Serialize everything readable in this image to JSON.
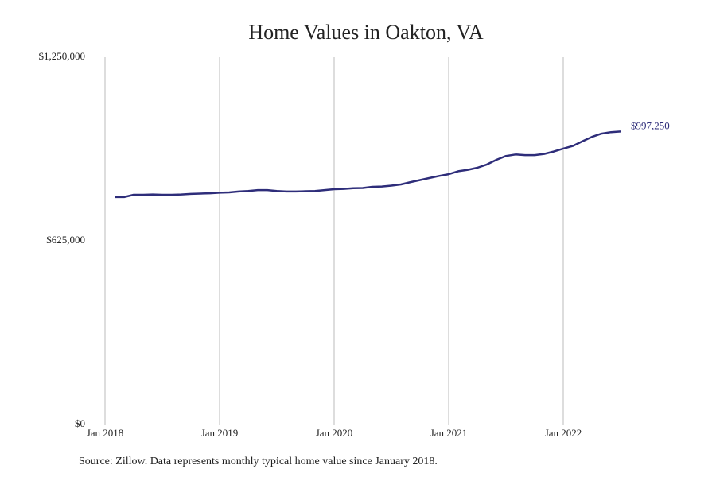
{
  "chart_data": {
    "type": "line",
    "title": "Home Values in Oakton, VA",
    "note": "Source: Zillow. Data represents monthly typical home value since January 2018.",
    "x": [
      "Feb 2018",
      "Mar 2018",
      "Apr 2018",
      "May 2018",
      "Jun 2018",
      "Jul 2018",
      "Aug 2018",
      "Sep 2018",
      "Oct 2018",
      "Nov 2018",
      "Dec 2018",
      "Jan 2019",
      "Feb 2019",
      "Mar 2019",
      "Apr 2019",
      "May 2019",
      "Jun 2019",
      "Jul 2019",
      "Aug 2019",
      "Sep 2019",
      "Oct 2019",
      "Nov 2019",
      "Dec 2019",
      "Jan 2020",
      "Feb 2020",
      "Mar 2020",
      "Apr 2020",
      "May 2020",
      "Jun 2020",
      "Jul 2020",
      "Aug 2020",
      "Sep 2020",
      "Oct 2020",
      "Nov 2020",
      "Dec 2020",
      "Jan 2021",
      "Feb 2021",
      "Mar 2021",
      "Apr 2021",
      "May 2021",
      "Jun 2021",
      "Jul 2021",
      "Aug 2021",
      "Sep 2021",
      "Oct 2021",
      "Nov 2021",
      "Dec 2021",
      "Jan 2022",
      "Feb 2022",
      "Mar 2022",
      "Apr 2022",
      "May 2022",
      "Jun 2022",
      "Jul 2022"
    ],
    "series": [
      {
        "name": "Oakton, VA",
        "color": "#2e2d7a",
        "values": [
          774000,
          774000,
          782000,
          782000,
          783000,
          782000,
          782000,
          783000,
          785000,
          786000,
          787000,
          789000,
          790000,
          793000,
          795000,
          798000,
          798000,
          795000,
          793000,
          793000,
          794000,
          795000,
          798000,
          801000,
          802000,
          804000,
          805000,
          809000,
          810000,
          813000,
          817000,
          825000,
          832000,
          839000,
          846000,
          852000,
          862000,
          867000,
          874000,
          885000,
          901000,
          914000,
          919000,
          917000,
          917000,
          921000,
          929000,
          939000,
          948000,
          964000,
          979000,
          990000,
          995000,
          997250
        ],
        "value_labels": [
          null,
          null,
          null,
          null,
          null,
          null,
          null,
          null,
          null,
          null,
          null,
          null,
          null,
          null,
          null,
          null,
          null,
          null,
          null,
          null,
          null,
          null,
          null,
          null,
          null,
          null,
          null,
          null,
          null,
          null,
          null,
          null,
          null,
          null,
          null,
          null,
          null,
          null,
          null,
          null,
          null,
          null,
          null,
          null,
          null,
          null,
          null,
          null,
          null,
          null,
          null,
          null,
          null,
          "$997,250"
        ]
      }
    ],
    "xlim": [
      "Jan 2018",
      "Jul 2022"
    ],
    "xticks": [
      "Jan 2018",
      "Jan 2019",
      "Jan 2020",
      "Jan 2021",
      "Jan 2022"
    ],
    "ylim": [
      0,
      1250000
    ],
    "yticks": [
      {
        "value": 0,
        "label": "$0"
      },
      {
        "value": 625000,
        "label": "$625,000"
      },
      {
        "value": 1250000,
        "label": "$1,250,000"
      }
    ],
    "grid": "x"
  }
}
